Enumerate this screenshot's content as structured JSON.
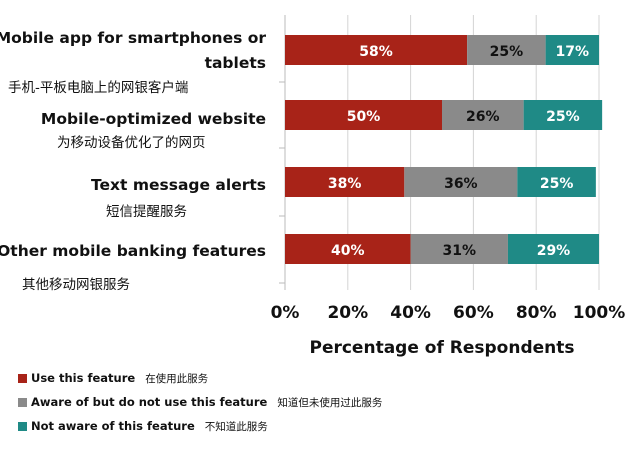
{
  "chart_data": {
    "type": "bar",
    "orientation": "horizontal",
    "stacked": true,
    "categories": [
      {
        "en_lines": [
          "Mobile app for smartphones or",
          "tablets"
        ],
        "cn": "手机-平板电脑上的网银客户端"
      },
      {
        "en_lines": [
          "Mobile-optimized website"
        ],
        "cn": "为移动设备优化了的网页"
      },
      {
        "en_lines": [
          "Text message alerts"
        ],
        "cn": "短信提醒服务"
      },
      {
        "en_lines": [
          "Other mobile banking features"
        ],
        "cn": "其他移动网银服务"
      }
    ],
    "series": [
      {
        "name": "Use this feature",
        "name_cn": "在使用此服务",
        "color": "#a82318",
        "values": [
          58,
          50,
          38,
          40
        ],
        "labels": [
          "58%",
          "50%",
          "38%",
          "40%"
        ]
      },
      {
        "name": "Aware of but do not use this feature",
        "name_cn": "知道但未使用过此服务",
        "color": "#8a8a8a",
        "values": [
          25,
          26,
          36,
          31
        ],
        "labels": [
          "25%",
          "26%",
          "36%",
          "31%"
        ]
      },
      {
        "name": "Not aware of this feature",
        "name_cn": "不知道此服务",
        "color": "#1f8a86",
        "values": [
          17,
          25,
          25,
          29
        ],
        "labels": [
          "17%",
          "25%",
          "25%",
          "29%"
        ]
      }
    ],
    "xlim": [
      0,
      100
    ],
    "ticks": [
      "0%",
      "20%",
      "40%",
      "60%",
      "80%",
      "100%"
    ],
    "xlabel": "Percentage of Respondents",
    "ylabel": "",
    "title": "",
    "legend_position": "bottom-left"
  }
}
